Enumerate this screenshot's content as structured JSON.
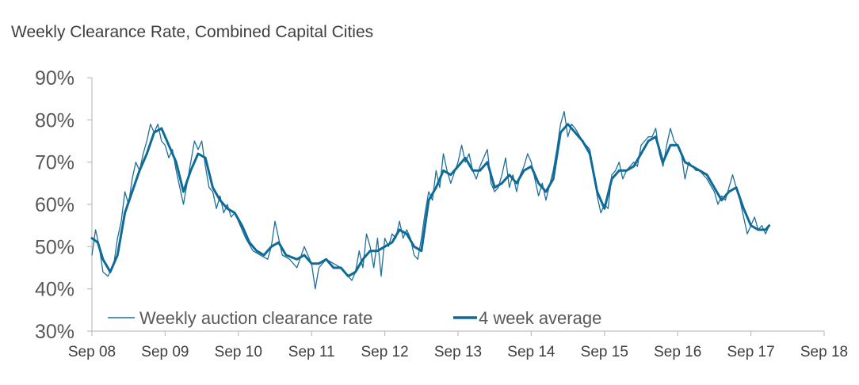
{
  "chart_data": {
    "type": "line",
    "title": "Weekly Clearance Rate, Combined Capital Cities",
    "xlabel": "",
    "ylabel": "",
    "ylim": [
      30,
      90
    ],
    "yticks": [
      "90%",
      "80%",
      "70%",
      "60%",
      "50%",
      "40%",
      "30%"
    ],
    "ytick_values": [
      90,
      80,
      70,
      60,
      50,
      40,
      30
    ],
    "xticks": [
      "Sep 08",
      "Sep 09",
      "Sep 10",
      "Sep 11",
      "Sep 12",
      "Sep 13",
      "Sep 14",
      "Sep 15",
      "Sep 16",
      "Sep 17",
      "Sep 18"
    ],
    "xlim": [
      0,
      10
    ],
    "legend_position": "bottom-left",
    "colors": {
      "weekly": "#1f6f99",
      "average": "#0e6a96",
      "axis": "#bfbfbf"
    },
    "series": [
      {
        "name": "Weekly auction clearance rate",
        "style": "thin",
        "points": [
          [
            0,
            48
          ],
          [
            0.05,
            54
          ],
          [
            0.1,
            50
          ],
          [
            0.15,
            44
          ],
          [
            0.22,
            43
          ],
          [
            0.3,
            46
          ],
          [
            0.35,
            52
          ],
          [
            0.4,
            56
          ],
          [
            0.45,
            63
          ],
          [
            0.5,
            60
          ],
          [
            0.55,
            66
          ],
          [
            0.6,
            70
          ],
          [
            0.65,
            68
          ],
          [
            0.7,
            72
          ],
          [
            0.75,
            75
          ],
          [
            0.8,
            79
          ],
          [
            0.85,
            77
          ],
          [
            0.9,
            79
          ],
          [
            0.95,
            75
          ],
          [
            1.0,
            74
          ],
          [
            1.05,
            71
          ],
          [
            1.1,
            73
          ],
          [
            1.15,
            68
          ],
          [
            1.2,
            64
          ],
          [
            1.25,
            60
          ],
          [
            1.3,
            65
          ],
          [
            1.35,
            70
          ],
          [
            1.4,
            75
          ],
          [
            1.45,
            73
          ],
          [
            1.5,
            75
          ],
          [
            1.55,
            69
          ],
          [
            1.6,
            64
          ],
          [
            1.65,
            63
          ],
          [
            1.7,
            59
          ],
          [
            1.75,
            62
          ],
          [
            1.8,
            58
          ],
          [
            1.85,
            60
          ],
          [
            1.9,
            57
          ],
          [
            1.95,
            58
          ],
          [
            2.0,
            56
          ],
          [
            2.1,
            52
          ],
          [
            2.2,
            49
          ],
          [
            2.3,
            48
          ],
          [
            2.4,
            47
          ],
          [
            2.45,
            50
          ],
          [
            2.5,
            56
          ],
          [
            2.55,
            52
          ],
          [
            2.6,
            48
          ],
          [
            2.7,
            47
          ],
          [
            2.8,
            45
          ],
          [
            2.9,
            50
          ],
          [
            3.0,
            46
          ],
          [
            3.05,
            40
          ],
          [
            3.1,
            45
          ],
          [
            3.2,
            47
          ],
          [
            3.3,
            46
          ],
          [
            3.4,
            45
          ],
          [
            3.5,
            43
          ],
          [
            3.55,
            42
          ],
          [
            3.6,
            44
          ],
          [
            3.65,
            49
          ],
          [
            3.7,
            45
          ],
          [
            3.75,
            53
          ],
          [
            3.8,
            50
          ],
          [
            3.85,
            45
          ],
          [
            3.9,
            52
          ],
          [
            3.95,
            43
          ],
          [
            4.0,
            52
          ],
          [
            4.05,
            50
          ],
          [
            4.1,
            53
          ],
          [
            4.15,
            52
          ],
          [
            4.2,
            56
          ],
          [
            4.25,
            52
          ],
          [
            4.3,
            54
          ],
          [
            4.35,
            52
          ],
          [
            4.4,
            48
          ],
          [
            4.45,
            47
          ],
          [
            4.5,
            52
          ],
          [
            4.55,
            58
          ],
          [
            4.6,
            63
          ],
          [
            4.65,
            61
          ],
          [
            4.7,
            68
          ],
          [
            4.75,
            64
          ],
          [
            4.8,
            72
          ],
          [
            4.85,
            68
          ],
          [
            4.9,
            65
          ],
          [
            5.0,
            70
          ],
          [
            5.05,
            74
          ],
          [
            5.1,
            70
          ],
          [
            5.15,
            72
          ],
          [
            5.2,
            68
          ],
          [
            5.25,
            66
          ],
          [
            5.3,
            69
          ],
          [
            5.35,
            71
          ],
          [
            5.4,
            73
          ],
          [
            5.45,
            65
          ],
          [
            5.5,
            63
          ],
          [
            5.55,
            64
          ],
          [
            5.6,
            67
          ],
          [
            5.65,
            71
          ],
          [
            5.7,
            64
          ],
          [
            5.75,
            67
          ],
          [
            5.8,
            63
          ],
          [
            5.85,
            67
          ],
          [
            5.9,
            69
          ],
          [
            5.95,
            72
          ],
          [
            6.0,
            70
          ],
          [
            6.05,
            66
          ],
          [
            6.1,
            62
          ],
          [
            6.15,
            65
          ],
          [
            6.2,
            61
          ],
          [
            6.3,
            68
          ],
          [
            6.35,
            73
          ],
          [
            6.4,
            79
          ],
          [
            6.45,
            82
          ],
          [
            6.5,
            76
          ],
          [
            6.55,
            79
          ],
          [
            6.6,
            78
          ],
          [
            6.7,
            75
          ],
          [
            6.8,
            73
          ],
          [
            6.85,
            68
          ],
          [
            6.9,
            62
          ],
          [
            6.95,
            58
          ],
          [
            7.0,
            60
          ],
          [
            7.05,
            59
          ],
          [
            7.1,
            67
          ],
          [
            7.15,
            68
          ],
          [
            7.2,
            70
          ],
          [
            7.25,
            66
          ],
          [
            7.3,
            68
          ],
          [
            7.4,
            70
          ],
          [
            7.45,
            69
          ],
          [
            7.5,
            74
          ],
          [
            7.55,
            75
          ],
          [
            7.6,
            76
          ],
          [
            7.65,
            76
          ],
          [
            7.7,
            78
          ],
          [
            7.75,
            72
          ],
          [
            7.8,
            69
          ],
          [
            7.85,
            74
          ],
          [
            7.9,
            78
          ],
          [
            7.95,
            75
          ],
          [
            8.0,
            74
          ],
          [
            8.05,
            72
          ],
          [
            8.1,
            66
          ],
          [
            8.15,
            70
          ],
          [
            8.2,
            69
          ],
          [
            8.25,
            68
          ],
          [
            8.3,
            68
          ],
          [
            8.4,
            66
          ],
          [
            8.5,
            63
          ],
          [
            8.55,
            60
          ],
          [
            8.6,
            62
          ],
          [
            8.65,
            61
          ],
          [
            8.7,
            64
          ],
          [
            8.75,
            67
          ],
          [
            8.8,
            64
          ],
          [
            8.85,
            61
          ],
          [
            8.9,
            57
          ],
          [
            8.95,
            53
          ],
          [
            9.0,
            55
          ],
          [
            9.05,
            57
          ],
          [
            9.1,
            54
          ],
          [
            9.15,
            55
          ],
          [
            9.2,
            53
          ],
          [
            9.25,
            55
          ]
        ]
      },
      {
        "name": "4 week average",
        "style": "thick",
        "points": [
          [
            0,
            52
          ],
          [
            0.08,
            51
          ],
          [
            0.15,
            47
          ],
          [
            0.25,
            44
          ],
          [
            0.35,
            48
          ],
          [
            0.45,
            58
          ],
          [
            0.55,
            63
          ],
          [
            0.65,
            68
          ],
          [
            0.75,
            72
          ],
          [
            0.85,
            77
          ],
          [
            0.95,
            78
          ],
          [
            1.05,
            74
          ],
          [
            1.15,
            70
          ],
          [
            1.25,
            63
          ],
          [
            1.35,
            68
          ],
          [
            1.45,
            72
          ],
          [
            1.55,
            71
          ],
          [
            1.65,
            64
          ],
          [
            1.75,
            61
          ],
          [
            1.85,
            59
          ],
          [
            1.95,
            58
          ],
          [
            2.05,
            55
          ],
          [
            2.15,
            51
          ],
          [
            2.25,
            49
          ],
          [
            2.35,
            48
          ],
          [
            2.45,
            50
          ],
          [
            2.55,
            51
          ],
          [
            2.65,
            48
          ],
          [
            2.8,
            47
          ],
          [
            2.9,
            48
          ],
          [
            3.0,
            46
          ],
          [
            3.1,
            46
          ],
          [
            3.2,
            47
          ],
          [
            3.3,
            45
          ],
          [
            3.4,
            45
          ],
          [
            3.5,
            43
          ],
          [
            3.6,
            44
          ],
          [
            3.7,
            47
          ],
          [
            3.8,
            49
          ],
          [
            3.9,
            49
          ],
          [
            4.0,
            50
          ],
          [
            4.1,
            51
          ],
          [
            4.2,
            54
          ],
          [
            4.3,
            53
          ],
          [
            4.4,
            50
          ],
          [
            4.5,
            49
          ],
          [
            4.6,
            61
          ],
          [
            4.7,
            64
          ],
          [
            4.8,
            68
          ],
          [
            4.9,
            67
          ],
          [
            5.0,
            69
          ],
          [
            5.1,
            71
          ],
          [
            5.2,
            68
          ],
          [
            5.3,
            68
          ],
          [
            5.4,
            70
          ],
          [
            5.5,
            64
          ],
          [
            5.6,
            65
          ],
          [
            5.7,
            67
          ],
          [
            5.8,
            65
          ],
          [
            5.9,
            68
          ],
          [
            6.0,
            69
          ],
          [
            6.1,
            65
          ],
          [
            6.2,
            63
          ],
          [
            6.3,
            66
          ],
          [
            6.4,
            77
          ],
          [
            6.5,
            79
          ],
          [
            6.6,
            77
          ],
          [
            6.7,
            75
          ],
          [
            6.8,
            72
          ],
          [
            6.9,
            63
          ],
          [
            7.0,
            59
          ],
          [
            7.1,
            66
          ],
          [
            7.2,
            68
          ],
          [
            7.3,
            68
          ],
          [
            7.4,
            69
          ],
          [
            7.5,
            72
          ],
          [
            7.6,
            75
          ],
          [
            7.7,
            76
          ],
          [
            7.8,
            70
          ],
          [
            7.9,
            74
          ],
          [
            8.0,
            74
          ],
          [
            8.1,
            70
          ],
          [
            8.2,
            69
          ],
          [
            8.3,
            68
          ],
          [
            8.4,
            67
          ],
          [
            8.5,
            64
          ],
          [
            8.6,
            61
          ],
          [
            8.7,
            63
          ],
          [
            8.8,
            64
          ],
          [
            8.9,
            59
          ],
          [
            9.0,
            55
          ],
          [
            9.1,
            54
          ],
          [
            9.2,
            54
          ],
          [
            9.25,
            55
          ]
        ]
      }
    ]
  }
}
